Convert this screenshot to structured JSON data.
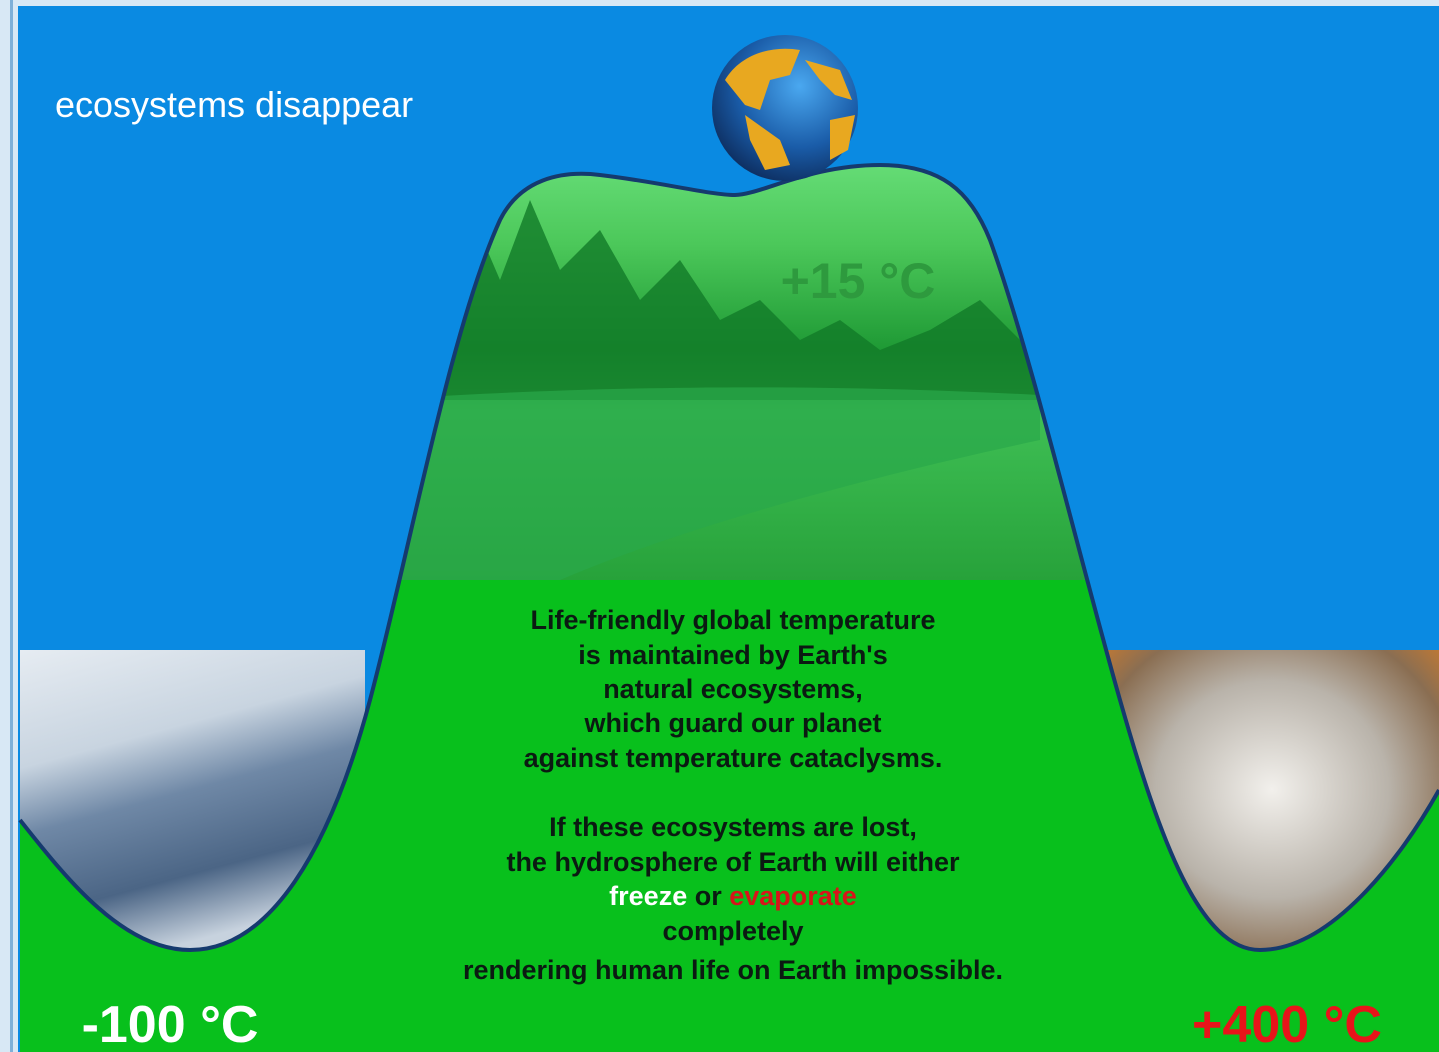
{
  "title": "ecosystems disappear",
  "center_label": "+15 °C",
  "left_label": "-100 °C",
  "right_label": "+400 °C",
  "paragraph1": [
    "Life-friendly global temperature",
    "is maintained by Earth's",
    "natural ecosystems,",
    "which guard our planet",
    "against temperature cataclysms."
  ],
  "paragraph2": {
    "lines": [
      "If these ecosystems are lost,",
      "the hydrosphere of Earth will either"
    ],
    "freeze": "freeze",
    "or": "or",
    "evaporate": "evaporate",
    "last_lines": [
      "completely",
      "rendering human life on Earth impossible."
    ]
  }
}
